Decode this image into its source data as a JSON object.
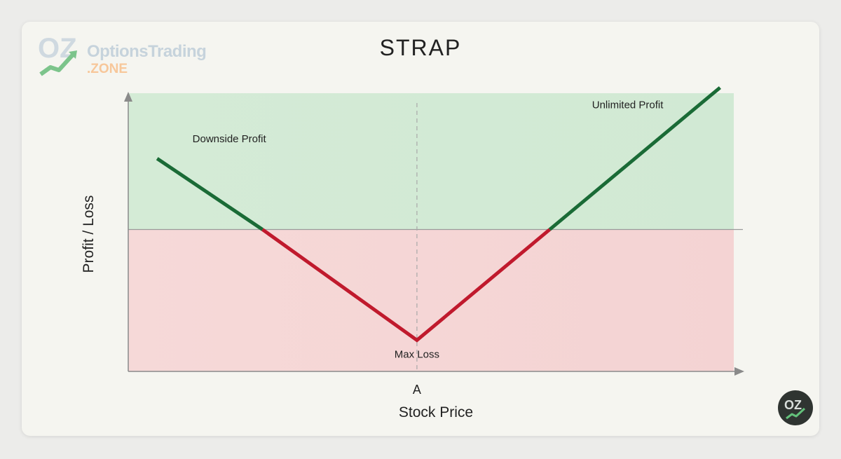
{
  "brand": {
    "name_main": "OptionsTrading",
    "name_suffix": ".ZONE",
    "badge_glyph": "OZ"
  },
  "chart_data": {
    "type": "line",
    "title": "STRAP",
    "xlabel": "Stock Price",
    "ylabel": "Profit / Loss",
    "x_ticks": [
      {
        "x": 0,
        "label": "A"
      }
    ],
    "xlim": [
      -10,
      11
    ],
    "ylim": [
      -5,
      5
    ],
    "grid": false,
    "series": [
      {
        "x": [
          -9,
          0,
          10.5
        ],
        "y": [
          2.5,
          -3.9,
          5.0
        ]
      }
    ],
    "breakevens": [
      -5.35,
      4.6
    ],
    "zones": {
      "profit": "profit",
      "loss": "loss"
    },
    "annotations": [
      {
        "text": "Downside Profit",
        "x": -6.5,
        "y": 3.2
      },
      {
        "text": "Unlimited Profit",
        "x": 7.3,
        "y": 4.4
      },
      {
        "text": "Max Loss",
        "x": 0,
        "y": -4.4
      }
    ],
    "colors": {
      "profit_line": "#1a6b36",
      "loss_line": "#c01a2d",
      "profit_zone": "#d4ebd6",
      "loss_zone": "#f4d3d3",
      "axis": "#8a8a8a"
    }
  }
}
